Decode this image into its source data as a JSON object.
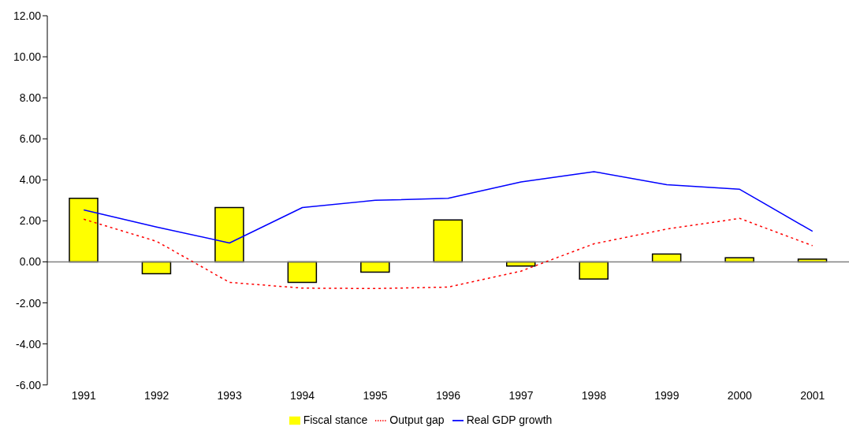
{
  "chart_data": {
    "type": "bar",
    "categories": [
      "1991",
      "1992",
      "1993",
      "1994",
      "1995",
      "1996",
      "1997",
      "1998",
      "1999",
      "2000",
      "2001"
    ],
    "series": [
      {
        "name": "Fiscal stance",
        "color": "#ffff00",
        "values": [
          3.1,
          -0.58,
          2.65,
          -1.0,
          -0.5,
          2.04,
          -0.2,
          -0.84,
          0.38,
          0.2,
          0.13
        ]
      },
      {
        "name": "Output gap",
        "type": "line",
        "color": "#ff0000",
        "line_style": "dotted",
        "values": [
          2.08,
          1.0,
          -1.0,
          -1.28,
          -1.3,
          -1.23,
          -0.45,
          0.88,
          1.6,
          2.12,
          0.79
        ]
      },
      {
        "name": "Real GDP growth",
        "type": "line",
        "color": "#0000ff",
        "line_style": "solid",
        "values": [
          2.53,
          1.7,
          0.92,
          2.65,
          3.0,
          3.1,
          3.9,
          4.4,
          3.76,
          3.54,
          1.49
        ]
      }
    ],
    "ylim": [
      -6,
      12
    ],
    "yticks": [
      {
        "value": -6,
        "label": "-6.00"
      },
      {
        "value": -4,
        "label": "-4.00"
      },
      {
        "value": -2,
        "label": "-2.00"
      },
      {
        "value": 0,
        "label": "0.00"
      },
      {
        "value": 2,
        "label": "2.00"
      },
      {
        "value": 4,
        "label": "4.00"
      },
      {
        "value": 6,
        "label": "6.00"
      },
      {
        "value": 8,
        "label": "8.00"
      },
      {
        "value": 10,
        "label": "10.00"
      },
      {
        "value": 12,
        "label": "12.00"
      }
    ],
    "legend": "bottom",
    "marker": "none"
  }
}
